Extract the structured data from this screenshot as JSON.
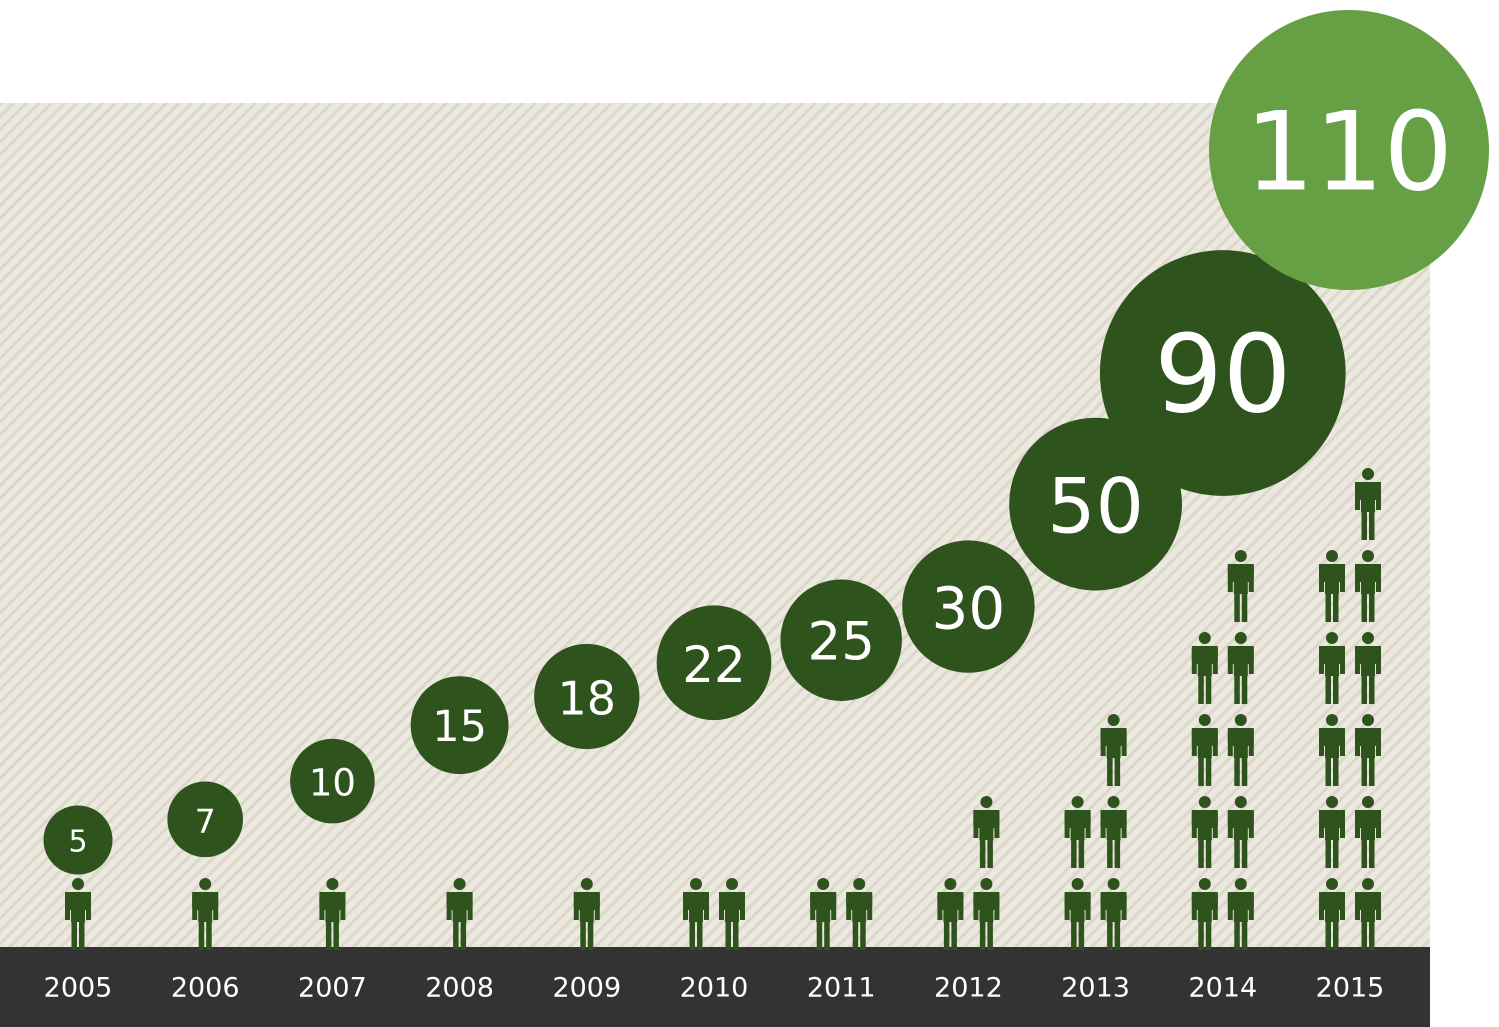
{
  "chart_data": {
    "type": "pictograph",
    "categories": [
      "2005",
      "2006",
      "2007",
      "2008",
      "2009",
      "2010",
      "2011",
      "2012",
      "2013",
      "2014",
      "2015"
    ],
    "values": [
      5,
      7,
      10,
      15,
      18,
      22,
      25,
      30,
      50,
      90,
      110
    ],
    "value_labels": [
      "5",
      "7",
      "10",
      "15",
      "18",
      "22",
      "25",
      "30",
      "50",
      "90",
      "110"
    ],
    "people_icons": [
      1,
      1,
      1,
      1,
      1,
      2,
      2,
      3,
      5,
      9,
      11
    ],
    "highlight_category": "2015"
  },
  "colors": {
    "background": "#ebe8df",
    "stripe": "#dcd7ca",
    "axis_bar": "#333333",
    "bubble": "#2f531d",
    "highlight_bubble": "#679f44",
    "person": "#2f531d",
    "label_text": "#ffffff"
  },
  "icons": {
    "person": "person-icon"
  }
}
